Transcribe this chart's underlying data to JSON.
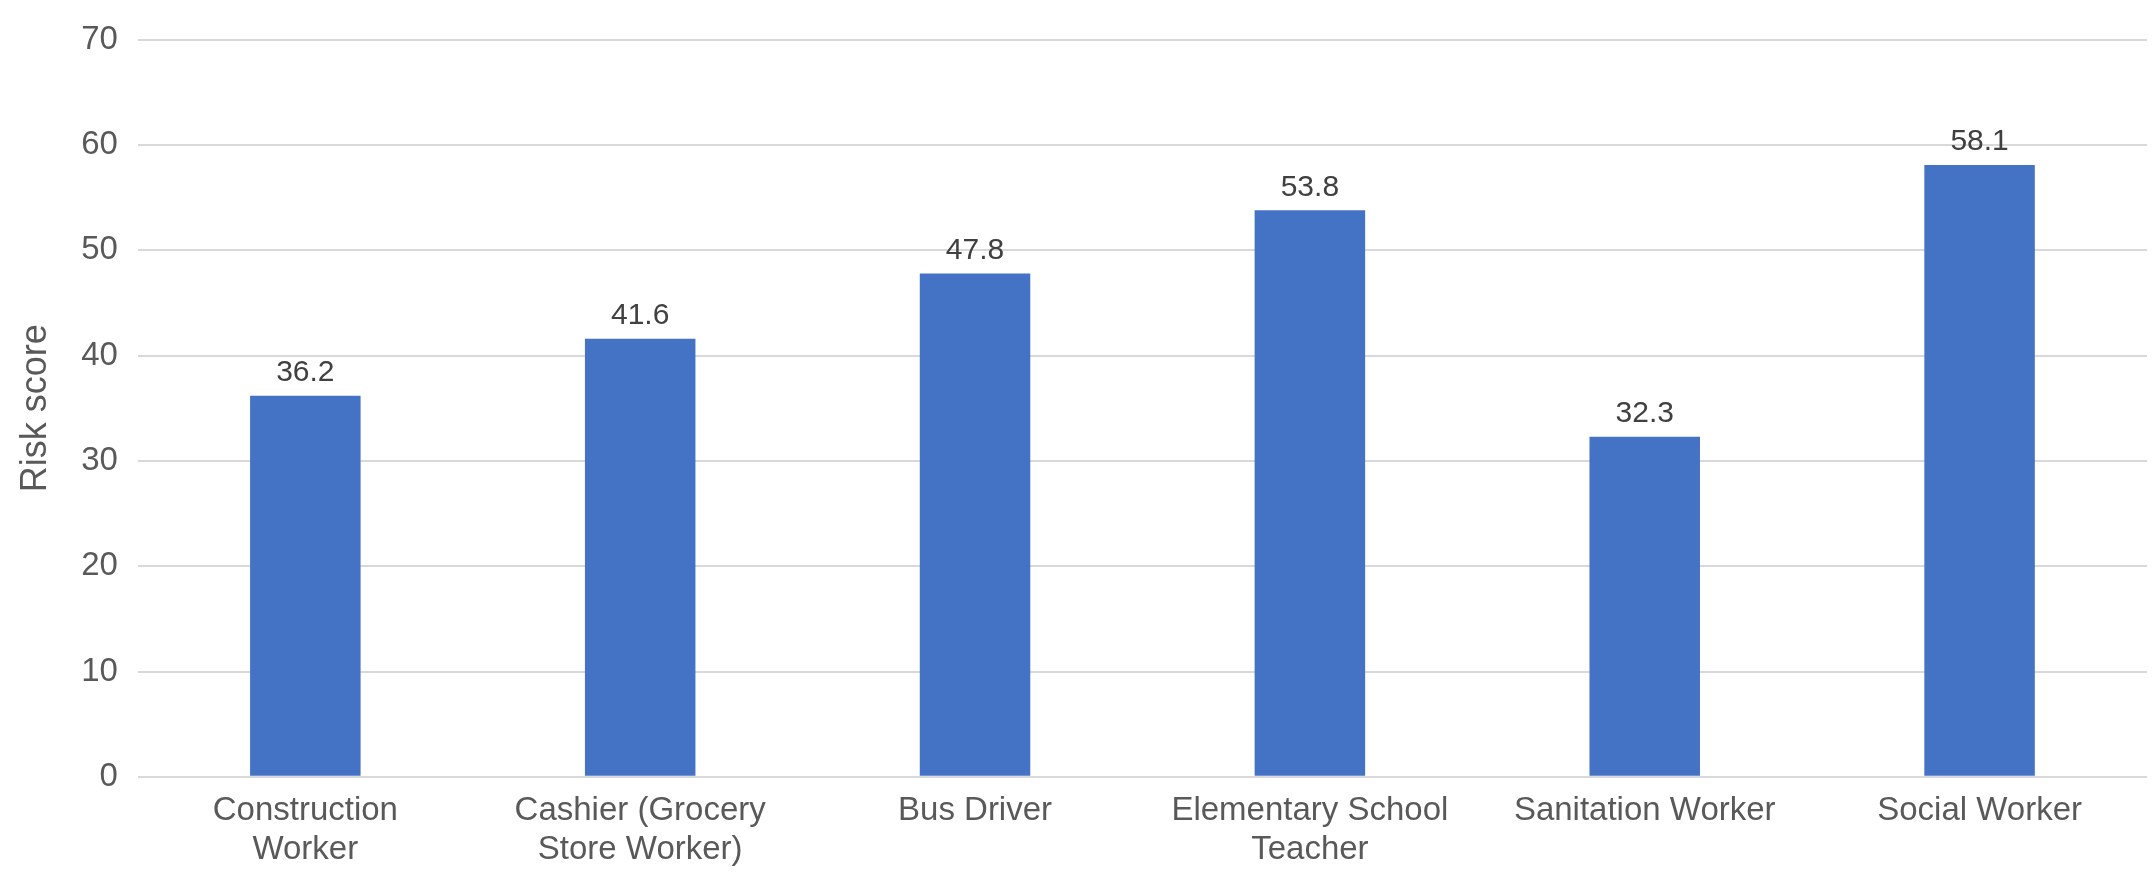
{
  "chart_data": {
    "type": "bar",
    "ylabel": "Risk score",
    "categories": [
      "Construction Worker",
      "Cashier (Grocery Store Worker)",
      "Bus Driver",
      "Elementary School Teacher",
      "Sanitation Worker",
      "Social Worker"
    ],
    "values": [
      36.2,
      41.6,
      47.8,
      53.8,
      32.3,
      58.1
    ],
    "color": "#4472c4",
    "ylim": [
      0,
      70
    ],
    "yticks": [
      0,
      10,
      20,
      30,
      40,
      50,
      60,
      70
    ],
    "grid": "y",
    "data_labels": true,
    "legend": false
  }
}
